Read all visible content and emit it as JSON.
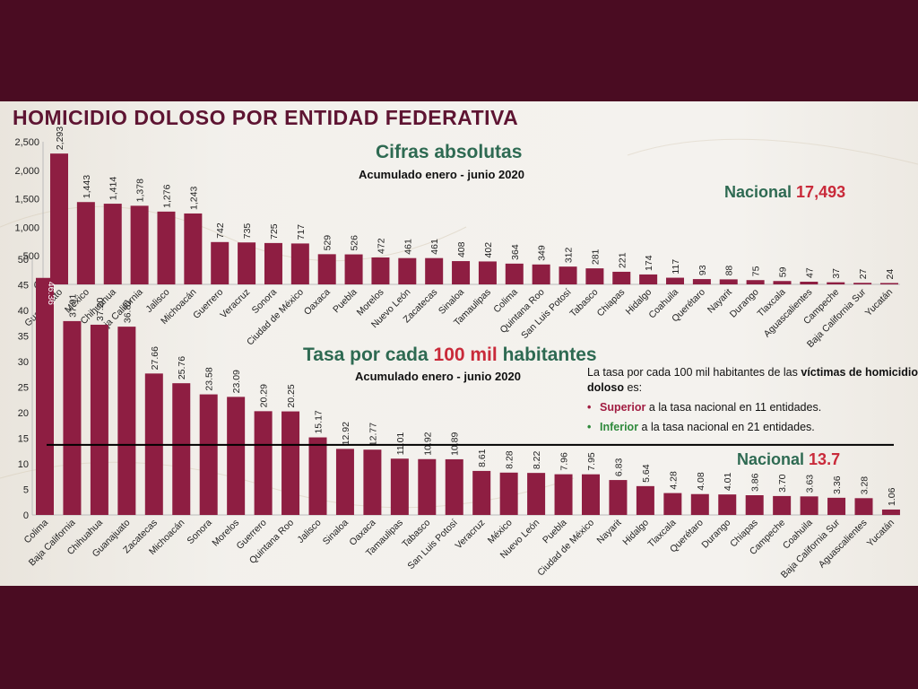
{
  "title": "HOMICIDIO DOLOSO POR ENTIDAD FEDERATIVA",
  "colors": {
    "bar": "#8e1e42",
    "title": "#5e1432",
    "green": "#2e6a52",
    "red": "#c92a3a"
  },
  "top_panel": {
    "subtitle": "Cifras absolutas",
    "period": "Acumulado enero - junio 2020",
    "national_label": "Nacional",
    "national_value": "17,493"
  },
  "bottom_panel": {
    "subtitle_part1": "Tasa por cada",
    "subtitle_highlight": "100 mil",
    "subtitle_part2": "habitantes",
    "period": "Acumulado enero - junio 2020",
    "national_label": "Nacional",
    "national_value": "13.7",
    "note_intro": "La tasa por cada 100 mil habitantes de las",
    "note_bold": "víctimas de homicidio doloso",
    "note_end": "es:",
    "bullet_superior_key": "Superior",
    "bullet_superior_text": "a la tasa nacional en 11 entidades.",
    "bullet_inferior_key": "Inferior",
    "bullet_inferior_text": "a la tasa nacional en 21 entidades."
  },
  "chart_data": [
    {
      "type": "bar",
      "title": "Cifras absolutas",
      "subtitle": "Acumulado enero - junio 2020",
      "categories": [
        "Guanajuato",
        "México",
        "Chihuahua",
        "Baja California",
        "Jalisco",
        "Michoacán",
        "Guerrero",
        "Veracruz",
        "Sonora",
        "Ciudad de México",
        "Oaxaca",
        "Puebla",
        "Morelos",
        "Nuevo León",
        "Zacatecas",
        "Sinaloa",
        "Tamaulipas",
        "Colima",
        "Quintana Roo",
        "San Luis Potosí",
        "Tabasco",
        "Chiapas",
        "Hidalgo",
        "Coahuila",
        "Querétaro",
        "Nayarit",
        "Durango",
        "Tlaxcala",
        "Aguascalientes",
        "Campeche",
        "Baja California Sur",
        "Yucatán"
      ],
      "values": [
        2293,
        1443,
        1414,
        1378,
        1276,
        1243,
        742,
        735,
        725,
        717,
        529,
        526,
        472,
        461,
        461,
        408,
        402,
        364,
        349,
        312,
        281,
        221,
        174,
        117,
        93,
        88,
        75,
        59,
        47,
        37,
        27,
        24
      ],
      "value_labels": [
        "2,293",
        "1,443",
        "1,414",
        "1,378",
        "1,276",
        "1,243",
        "742",
        "735",
        "725",
        "717",
        "529",
        "526",
        "472",
        "461",
        "461",
        "408",
        "402",
        "364",
        "349",
        "312",
        "281",
        "221",
        "174",
        "117",
        "93",
        "88",
        "75",
        "59",
        "47",
        "37",
        "27",
        "24"
      ],
      "yticks": [
        "0",
        "500",
        "1,000",
        "1,500",
        "2,000",
        "2,500"
      ],
      "ylim": [
        0,
        2500
      ],
      "xlabel": "",
      "ylabel": "",
      "annotation": "Nacional 17,493"
    },
    {
      "type": "bar",
      "title": "Tasa por cada 100 mil habitantes",
      "subtitle": "Acumulado enero - junio 2020",
      "categories": [
        "Colima",
        "Baja California",
        "Chihuahua",
        "Guanajuato",
        "Zacatecas",
        "Michoacán",
        "Sonora",
        "Morelos",
        "Guerrero",
        "Quintana Roo",
        "Jalisco",
        "Sinaloa",
        "Oaxaca",
        "Tamaulipas",
        "Tabasco",
        "San Luis Potosí",
        "Veracruz",
        "México",
        "Nuevo León",
        "Puebla",
        "Ciudad de México",
        "Nayarit",
        "Hidalgo",
        "Tlaxcala",
        "Querétaro",
        "Durango",
        "Chiapas",
        "Campeche",
        "Coahuila",
        "Baja California Sur",
        "Aguascalientes",
        "Yucatán"
      ],
      "values": [
        46.36,
        37.91,
        37.2,
        36.82,
        27.66,
        25.76,
        23.58,
        23.09,
        20.29,
        20.25,
        15.17,
        12.92,
        12.77,
        11.01,
        10.92,
        10.89,
        8.61,
        8.28,
        8.22,
        7.96,
        7.95,
        6.83,
        5.64,
        4.28,
        4.08,
        4.01,
        3.86,
        3.7,
        3.63,
        3.36,
        3.28,
        1.06
      ],
      "value_labels": [
        "46.36",
        "37.91",
        "37.20",
        "36.82",
        "27.66",
        "25.76",
        "23.58",
        "23.09",
        "20.29",
        "20.25",
        "15.17",
        "12.92",
        "12.77",
        "11.01",
        "10.92",
        "10.89",
        "8.61",
        "8.28",
        "8.22",
        "7.96",
        "7.95",
        "6.83",
        "5.64",
        "4.28",
        "4.08",
        "4.01",
        "3.86",
        "3.70",
        "3.63",
        "3.36",
        "3.28",
        "1.06"
      ],
      "yticks": [
        "0",
        "5",
        "10",
        "15",
        "20",
        "25",
        "30",
        "35",
        "40",
        "45",
        "50"
      ],
      "ylim": [
        0,
        50
      ],
      "reference_line": 13.7,
      "xlabel": "",
      "ylabel": "",
      "annotation": "Nacional 13.7"
    }
  ]
}
